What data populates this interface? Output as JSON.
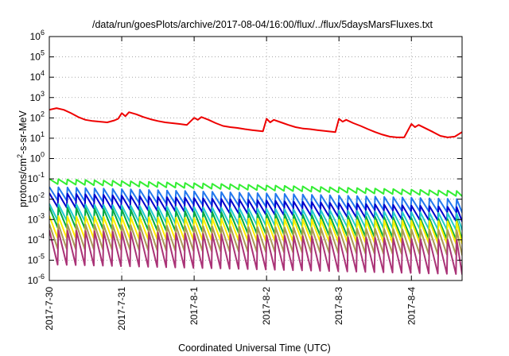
{
  "chart_data": {
    "type": "line",
    "title": "/data/run/goesPlots/archive/2017-08-04/16:00/flux/../flux/5daysMarsFluxes.txt",
    "xlabel": "Coordinated Universal Time (UTC)",
    "ylabel_base": "protons/cm",
    "ylabel_sup": "2",
    "ylabel_rest": "-s-sr-MeV",
    "yscale": "log",
    "ylim": [
      1e-06,
      1000000.0
    ],
    "y_ticks": [
      {
        "base": "10",
        "exp": "-6"
      },
      {
        "base": "10",
        "exp": "-5"
      },
      {
        "base": "10",
        "exp": "-4"
      },
      {
        "base": "10",
        "exp": "-3"
      },
      {
        "base": "10",
        "exp": "-2"
      },
      {
        "base": "10",
        "exp": "-1"
      },
      {
        "base": "10",
        "exp": "0"
      },
      {
        "base": "10",
        "exp": "1"
      },
      {
        "base": "10",
        "exp": "2"
      },
      {
        "base": "10",
        "exp": "3"
      },
      {
        "base": "10",
        "exp": "4"
      },
      {
        "base": "10",
        "exp": "5"
      },
      {
        "base": "10",
        "exp": "6"
      }
    ],
    "x_ticks": [
      "2017-7-30",
      "2017-7-31",
      "2017-8-1",
      "2017-8-2",
      "2017-8-3",
      "2017-8-4"
    ],
    "x_range_days": [
      0,
      5.7
    ],
    "grid": "dotted",
    "series": [
      {
        "color": "#ee0000",
        "shape": "decay",
        "points": [
          [
            0.0,
            250
          ],
          [
            0.1,
            300
          ],
          [
            0.2,
            250
          ],
          [
            0.3,
            170
          ],
          [
            0.4,
            110
          ],
          [
            0.5,
            80
          ],
          [
            0.6,
            70
          ],
          [
            0.7,
            65
          ],
          [
            0.8,
            60
          ],
          [
            0.9,
            75
          ],
          [
            0.95,
            90
          ],
          [
            1.0,
            170
          ],
          [
            1.05,
            120
          ],
          [
            1.1,
            190
          ],
          [
            1.2,
            150
          ],
          [
            1.3,
            110
          ],
          [
            1.4,
            85
          ],
          [
            1.5,
            70
          ],
          [
            1.6,
            60
          ],
          [
            1.7,
            55
          ],
          [
            1.8,
            50
          ],
          [
            1.9,
            45
          ],
          [
            2.0,
            100
          ],
          [
            2.05,
            80
          ],
          [
            2.1,
            110
          ],
          [
            2.2,
            80
          ],
          [
            2.3,
            55
          ],
          [
            2.4,
            40
          ],
          [
            2.5,
            35
          ],
          [
            2.6,
            32
          ],
          [
            2.7,
            28
          ],
          [
            2.8,
            25
          ],
          [
            2.95,
            22
          ],
          [
            3.0,
            90
          ],
          [
            3.05,
            60
          ],
          [
            3.1,
            80
          ],
          [
            3.2,
            60
          ],
          [
            3.3,
            45
          ],
          [
            3.4,
            35
          ],
          [
            3.5,
            30
          ],
          [
            3.6,
            28
          ],
          [
            3.7,
            25
          ],
          [
            3.85,
            22
          ],
          [
            3.95,
            20
          ],
          [
            4.0,
            90
          ],
          [
            4.05,
            65
          ],
          [
            4.1,
            80
          ],
          [
            4.2,
            55
          ],
          [
            4.3,
            40
          ],
          [
            4.4,
            28
          ],
          [
            4.5,
            20
          ],
          [
            4.6,
            15
          ],
          [
            4.7,
            12
          ],
          [
            4.8,
            11
          ],
          [
            4.9,
            11
          ],
          [
            5.0,
            50
          ],
          [
            5.05,
            35
          ],
          [
            5.1,
            45
          ],
          [
            5.2,
            30
          ],
          [
            5.3,
            20
          ],
          [
            5.4,
            13
          ],
          [
            5.5,
            11
          ],
          [
            5.6,
            12
          ],
          [
            5.7,
            20
          ]
        ]
      },
      {
        "color": "#33ee33",
        "shape": "sawtooth",
        "peak": [
          0.1,
          0.025
        ],
        "trough_ratio": 0.55
      },
      {
        "color": "#2277ee",
        "shape": "sawtooth",
        "peak": [
          0.04,
          0.01
        ],
        "trough_ratio": 0.22
      },
      {
        "color": "#0000cc",
        "shape": "sawtooth",
        "peak": [
          0.02,
          0.004
        ],
        "trough_ratio": 0.2
      },
      {
        "color": "#22cccc",
        "shape": "sawtooth",
        "peak": [
          0.006,
          0.002
        ],
        "trough_ratio": 0.15
      },
      {
        "color": "#00aa44",
        "shape": "sawtooth",
        "peak": [
          0.004,
          0.001
        ],
        "trough_ratio": 0.1
      },
      {
        "color": "#ffee00",
        "shape": "sawtooth",
        "peak": [
          0.0015,
          0.0008
        ],
        "trough_ratio": 0.08
      },
      {
        "color": "#aa9955",
        "shape": "sawtooth",
        "peak": [
          0.0006,
          0.0003
        ],
        "trough_ratio": 0.06
      },
      {
        "color": "#aa3377",
        "shape": "sawtooth",
        "peak": [
          0.0003,
          0.0001
        ],
        "trough_ratio": 0.02
      }
    ]
  }
}
